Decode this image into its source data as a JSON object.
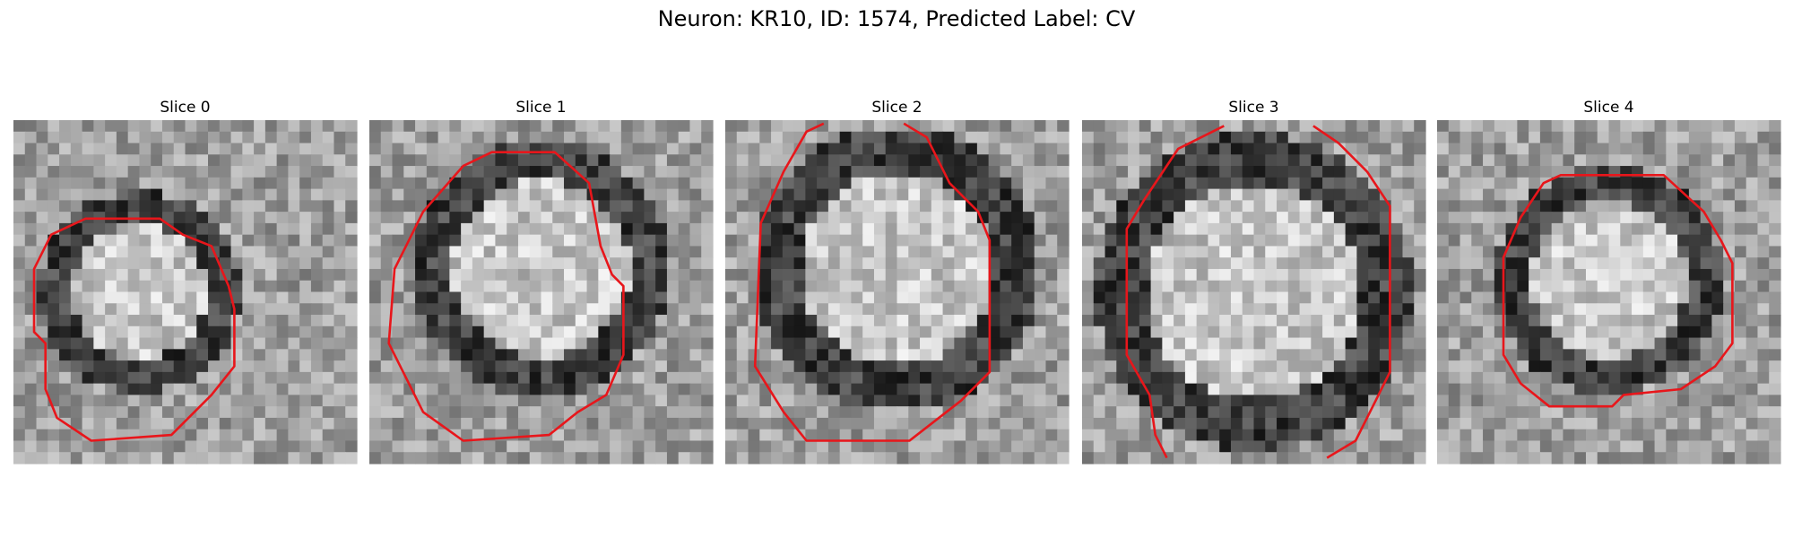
{
  "title": "Neuron: KR10, ID: 1574, Predicted Label: CV",
  "panels": [
    {
      "title": "Slice 0"
    },
    {
      "title": "Slice 1"
    },
    {
      "title": "Slice 2"
    },
    {
      "title": "Slice 3"
    },
    {
      "title": "Slice 4"
    }
  ]
}
